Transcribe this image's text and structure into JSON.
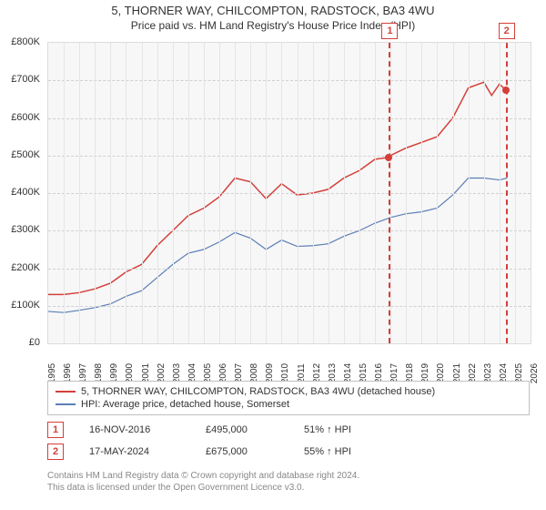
{
  "title": "5, THORNER WAY, CHILCOMPTON, RADSTOCK, BA3 4WU",
  "subtitle": "Price paid vs. HM Land Registry's House Price Index (HPI)",
  "chart": {
    "type": "line",
    "background_color": "#f7f7f7",
    "grid_color": "#d0d0d0",
    "border_color": "#dcdcdc",
    "y_axis": {
      "min": 0,
      "max": 800000,
      "step": 100000,
      "labels": [
        "£0",
        "£100K",
        "£200K",
        "£300K",
        "£400K",
        "£500K",
        "£600K",
        "£700K",
        "£800K"
      ],
      "label_fontsize": 11,
      "label_color": "#333333"
    },
    "x_axis": {
      "min": 1995,
      "max": 2026,
      "step": 1,
      "labels": [
        "1995",
        "1996",
        "1997",
        "1998",
        "1999",
        "2000",
        "2001",
        "2002",
        "2003",
        "2004",
        "2005",
        "2006",
        "2007",
        "2008",
        "2009",
        "2010",
        "2011",
        "2012",
        "2013",
        "2014",
        "2015",
        "2016",
        "2017",
        "2018",
        "2019",
        "2020",
        "2021",
        "2022",
        "2023",
        "2024",
        "2025",
        "2026"
      ],
      "label_fontsize": 10,
      "label_color": "#333333",
      "label_rotation": -90
    },
    "series": [
      {
        "name": "price_paid",
        "color": "#d43f3a",
        "line_width": 1.5,
        "data": [
          [
            1995,
            130000
          ],
          [
            1996,
            130000
          ],
          [
            1997,
            135000
          ],
          [
            1998,
            145000
          ],
          [
            1999,
            160000
          ],
          [
            2000,
            190000
          ],
          [
            2001,
            210000
          ],
          [
            2002,
            260000
          ],
          [
            2003,
            300000
          ],
          [
            2004,
            340000
          ],
          [
            2005,
            360000
          ],
          [
            2006,
            390000
          ],
          [
            2007,
            440000
          ],
          [
            2008,
            430000
          ],
          [
            2009,
            385000
          ],
          [
            2010,
            425000
          ],
          [
            2011,
            395000
          ],
          [
            2012,
            400000
          ],
          [
            2013,
            410000
          ],
          [
            2014,
            440000
          ],
          [
            2015,
            460000
          ],
          [
            2016,
            490000
          ],
          [
            2016.9,
            495000
          ],
          [
            2017,
            500000
          ],
          [
            2018,
            520000
          ],
          [
            2019,
            535000
          ],
          [
            2020,
            550000
          ],
          [
            2021,
            600000
          ],
          [
            2022,
            680000
          ],
          [
            2023,
            695000
          ],
          [
            2023.5,
            660000
          ],
          [
            2024,
            690000
          ],
          [
            2024.4,
            675000
          ]
        ]
      },
      {
        "name": "hpi",
        "color": "#5b7fb5",
        "line_width": 1.2,
        "data": [
          [
            1995,
            85000
          ],
          [
            1996,
            82000
          ],
          [
            1997,
            88000
          ],
          [
            1998,
            95000
          ],
          [
            1999,
            105000
          ],
          [
            2000,
            125000
          ],
          [
            2001,
            140000
          ],
          [
            2002,
            175000
          ],
          [
            2003,
            210000
          ],
          [
            2004,
            240000
          ],
          [
            2005,
            250000
          ],
          [
            2006,
            270000
          ],
          [
            2007,
            295000
          ],
          [
            2008,
            280000
          ],
          [
            2009,
            250000
          ],
          [
            2010,
            275000
          ],
          [
            2011,
            258000
          ],
          [
            2012,
            260000
          ],
          [
            2013,
            265000
          ],
          [
            2014,
            285000
          ],
          [
            2015,
            300000
          ],
          [
            2016,
            320000
          ],
          [
            2017,
            335000
          ],
          [
            2018,
            345000
          ],
          [
            2019,
            350000
          ],
          [
            2020,
            360000
          ],
          [
            2021,
            395000
          ],
          [
            2022,
            440000
          ],
          [
            2023,
            440000
          ],
          [
            2024,
            435000
          ],
          [
            2024.5,
            440000
          ]
        ]
      }
    ],
    "markers": [
      {
        "id": "1",
        "x": 2016.9,
        "y": 495000
      },
      {
        "id": "2",
        "x": 2024.4,
        "y": 675000
      }
    ]
  },
  "legend": {
    "items": [
      {
        "color": "#d43f3a",
        "label": "5, THORNER WAY, CHILCOMPTON, RADSTOCK, BA3 4WU (detached house)"
      },
      {
        "color": "#5b7fb5",
        "label": "HPI: Average price, detached house, Somerset"
      }
    ]
  },
  "datapoints": [
    {
      "id": "1",
      "date": "16-NOV-2016",
      "price": "£495,000",
      "pct": "51% ↑ HPI"
    },
    {
      "id": "2",
      "date": "17-MAY-2024",
      "price": "£675,000",
      "pct": "55% ↑ HPI"
    }
  ],
  "footer": {
    "line1": "Contains HM Land Registry data © Crown copyright and database right 2024.",
    "line2": "This data is licensed under the Open Government Licence v3.0."
  },
  "colors": {
    "marker_border": "#d43f3a",
    "marker_text": "#d43f3a",
    "footer_text": "#888888"
  }
}
